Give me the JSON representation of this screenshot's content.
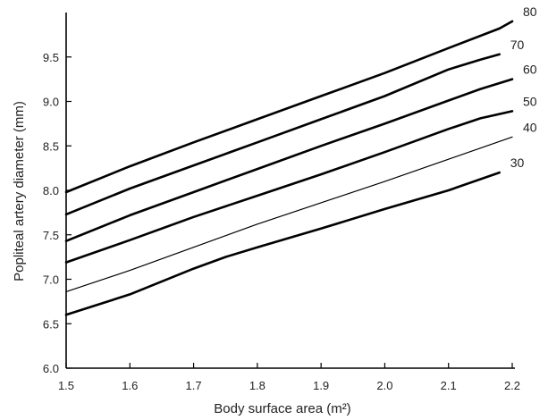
{
  "chart_data": {
    "type": "line",
    "title": "",
    "xlabel": "Body surface area (m²)",
    "ylabel": "Popliteal artery diameter (mm)",
    "xlim": [
      1.5,
      2.2
    ],
    "ylim": [
      6.0,
      10.0
    ],
    "xticks": [
      "1.5",
      "1.6",
      "1.7",
      "1.8",
      "1.9",
      "2.0",
      "2.1",
      "2.2"
    ],
    "yticks": [
      "6.0",
      "6.5",
      "7.0",
      "7.5",
      "8.0",
      "8.5",
      "9.0",
      "9.5"
    ],
    "grid": false,
    "legend": "none",
    "series": [
      {
        "name": "80",
        "bold": true,
        "x": [
          1.5,
          1.6,
          1.7,
          1.8,
          1.9,
          2.0,
          2.1,
          2.18,
          2.2
        ],
        "y": [
          7.98,
          8.27,
          8.54,
          8.8,
          9.06,
          9.32,
          9.6,
          9.82,
          9.9
        ]
      },
      {
        "name": "70",
        "bold": true,
        "x": [
          1.5,
          1.6,
          1.7,
          1.8,
          1.9,
          2.0,
          2.1,
          2.15,
          2.18
        ],
        "y": [
          7.73,
          8.02,
          8.28,
          8.54,
          8.8,
          9.06,
          9.36,
          9.47,
          9.53
        ]
      },
      {
        "name": "60",
        "bold": true,
        "x": [
          1.5,
          1.6,
          1.7,
          1.8,
          1.9,
          2.0,
          2.1,
          2.15,
          2.2
        ],
        "y": [
          7.43,
          7.72,
          7.98,
          8.24,
          8.5,
          8.75,
          9.01,
          9.14,
          9.25
        ]
      },
      {
        "name": "50",
        "bold": true,
        "x": [
          1.5,
          1.6,
          1.7,
          1.8,
          1.9,
          2.0,
          2.1,
          2.15,
          2.2
        ],
        "y": [
          7.19,
          7.44,
          7.7,
          7.94,
          8.18,
          8.43,
          8.69,
          8.81,
          8.89
        ]
      },
      {
        "name": "40",
        "bold": false,
        "x": [
          1.5,
          1.6,
          1.7,
          1.8,
          1.9,
          2.0,
          2.1,
          2.2
        ],
        "y": [
          6.86,
          7.1,
          7.36,
          7.62,
          7.86,
          8.1,
          8.35,
          8.6
        ]
      },
      {
        "name": "30",
        "bold": true,
        "x": [
          1.5,
          1.6,
          1.7,
          1.75,
          1.8,
          1.9,
          2.0,
          2.1,
          2.18
        ],
        "y": [
          6.6,
          6.83,
          7.12,
          7.25,
          7.36,
          7.57,
          7.79,
          8.0,
          8.2
        ]
      }
    ]
  }
}
